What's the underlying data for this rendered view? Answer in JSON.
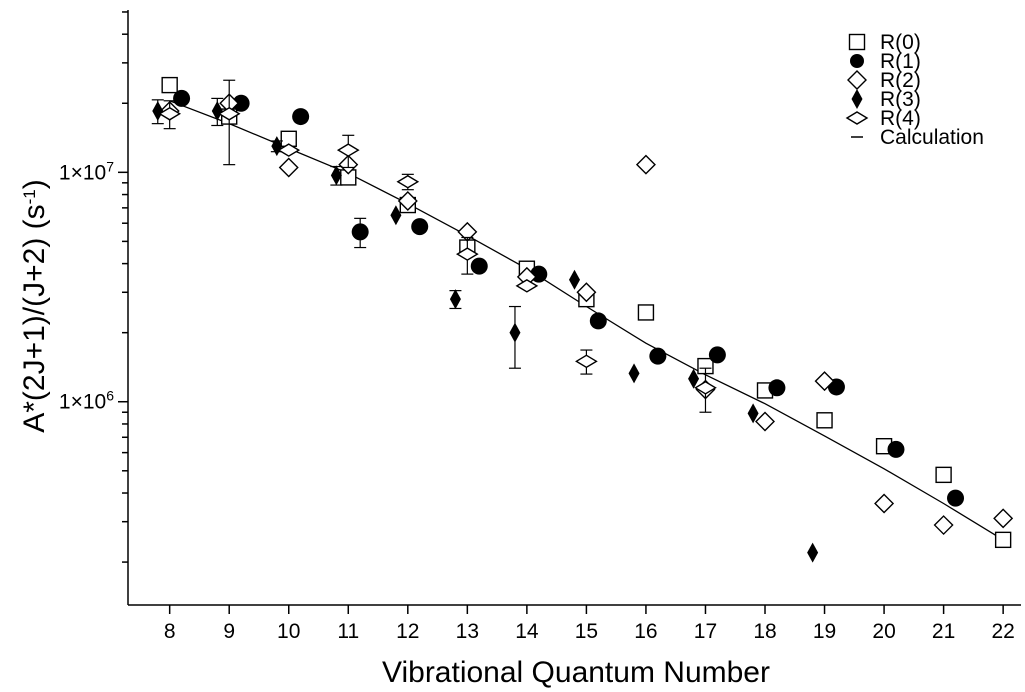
{
  "chart_data": {
    "type": "scatter",
    "title": "",
    "xlabel": "Vibrational Quantum Number",
    "ylabel": "A*(2J+1)/(J+2) (s",
    "ylabel_sup": "-1",
    "ylabel_close": ")",
    "yscale": "log",
    "xlim": [
      7.3,
      22.3
    ],
    "ylim": [
      130000,
      51000000
    ],
    "x_ticks": [
      8,
      9,
      10,
      11,
      12,
      13,
      14,
      15,
      16,
      17,
      18,
      19,
      20,
      21,
      22
    ],
    "y_tick_labels": [
      {
        "value": 1000000,
        "mantissa": "1×10",
        "exp": "6"
      },
      {
        "value": 10000000,
        "mantissa": "1×10",
        "exp": "7"
      }
    ],
    "legend_position": "top-right",
    "series": [
      {
        "name": "R(0)",
        "marker": "square-open",
        "x": [
          8,
          9,
          10,
          11,
          12,
          13,
          14,
          15,
          16,
          17,
          18,
          19,
          20,
          21,
          22
        ],
        "y": [
          24000000,
          17500000,
          14000000,
          9500000,
          7200000,
          4700000,
          3800000,
          2800000,
          2450000,
          1430000,
          1120000,
          830000,
          640000,
          480000,
          250000
        ]
      },
      {
        "name": "R(1)",
        "marker": "circle-filled",
        "x": [
          8.2,
          9.2,
          10.2,
          11.2,
          12.2,
          13.2,
          14.2,
          15.2,
          16.2,
          17.2,
          18.2,
          19.2,
          20.2,
          21.2
        ],
        "y": [
          21000000,
          20000000,
          17500000,
          5500000,
          5800000,
          3900000,
          3600000,
          2250000,
          1580000,
          1600000,
          1150000,
          1160000,
          620000,
          380000
        ],
        "errors": [
          0,
          0,
          0,
          800000,
          0,
          0,
          0,
          0,
          0,
          0,
          0,
          0,
          0,
          0
        ]
      },
      {
        "name": "R(2)",
        "marker": "diamond-open",
        "x": [
          8,
          9,
          10,
          11,
          12,
          13,
          14,
          15,
          16,
          17,
          18,
          19,
          20,
          21,
          22
        ],
        "y": [
          18500000,
          20000000,
          10500000,
          10800000,
          7500000,
          5500000,
          3500000,
          3000000,
          10800000,
          1130000,
          820000,
          1230000,
          360000,
          290000,
          310000
        ]
      },
      {
        "name": "R(3)",
        "marker": "diamond-filled-narrow",
        "x": [
          7.8,
          8.8,
          9.8,
          10.8,
          11.8,
          12.8,
          13.8,
          14.8,
          15.8,
          16.8,
          17.8,
          18.8
        ],
        "y": [
          18500000,
          18500000,
          13000000,
          9700000,
          6500000,
          2800000,
          2000000,
          3400000,
          1330000,
          1260000,
          890000,
          220000
        ],
        "errors": [
          2200000,
          2500000,
          700000,
          900000,
          0,
          250000,
          600000,
          0,
          0,
          0,
          0,
          0
        ]
      },
      {
        "name": "R(4)",
        "marker": "diamond-open-wide",
        "x": [
          8,
          9,
          10,
          11,
          12,
          13,
          14,
          15,
          16,
          17
        ],
        "y": [
          18000000,
          18000000,
          12500000,
          12500000,
          9100000,
          4400000,
          3200000,
          1500000,
          0,
          1150000
        ],
        "errors": [
          2500000,
          7200000,
          0,
          2000000,
          700000,
          800000,
          0,
          180000,
          0,
          250000
        ]
      },
      {
        "name": "Calculation",
        "marker": "line",
        "x": [
          8,
          9,
          10,
          11,
          12,
          13,
          14,
          15,
          16,
          17,
          18,
          19,
          20,
          21,
          22
        ],
        "y": [
          20500000,
          16300000,
          12700000,
          9900000,
          7300000,
          5300000,
          3800000,
          2600000,
          1800000,
          1310000,
          980000,
          710000,
          510000,
          360000,
          250000
        ]
      }
    ]
  }
}
